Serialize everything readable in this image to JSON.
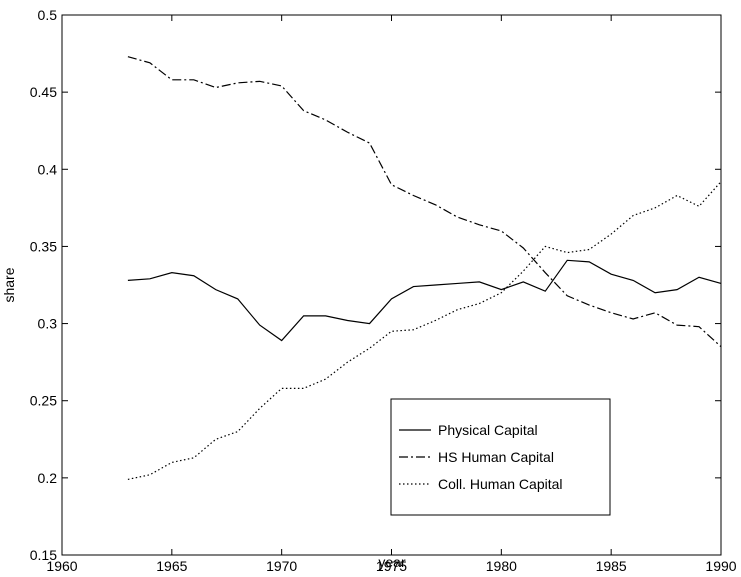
{
  "chart_data": {
    "type": "line",
    "xlabel": "year",
    "ylabel": "share",
    "x": [
      1963,
      1964,
      1965,
      1966,
      1967,
      1968,
      1969,
      1970,
      1971,
      1972,
      1973,
      1974,
      1975,
      1976,
      1977,
      1978,
      1979,
      1980,
      1981,
      1982,
      1983,
      1984,
      1985,
      1986,
      1987,
      1988,
      1989,
      1990
    ],
    "series": [
      {
        "name": "Physical Capital",
        "color": "#000000",
        "linestyle": "solid",
        "values": [
          0.328,
          0.329,
          0.333,
          0.331,
          0.322,
          0.316,
          0.299,
          0.289,
          0.305,
          0.305,
          0.302,
          0.3,
          0.316,
          0.324,
          0.325,
          0.326,
          0.327,
          0.322,
          0.327,
          0.321,
          0.341,
          0.34,
          0.332,
          0.328,
          0.32,
          0.322,
          0.33,
          0.326
        ]
      },
      {
        "name": "HS Human Capital",
        "color": "#000000",
        "linestyle": "dashdot",
        "values": [
          0.473,
          0.469,
          0.458,
          0.458,
          0.453,
          0.456,
          0.457,
          0.454,
          0.438,
          0.432,
          0.424,
          0.417,
          0.39,
          0.383,
          0.377,
          0.369,
          0.364,
          0.36,
          0.349,
          0.333,
          0.318,
          0.312,
          0.307,
          0.303,
          0.307,
          0.299,
          0.298,
          0.285
        ]
      },
      {
        "name": "Coll. Human Capital",
        "color": "#000000",
        "linestyle": "dotted",
        "values": [
          0.199,
          0.202,
          0.21,
          0.213,
          0.225,
          0.23,
          0.245,
          0.258,
          0.258,
          0.264,
          0.275,
          0.284,
          0.295,
          0.296,
          0.302,
          0.309,
          0.313,
          0.32,
          0.334,
          0.35,
          0.346,
          0.348,
          0.358,
          0.37,
          0.375,
          0.383,
          0.376,
          0.392
        ]
      }
    ],
    "xlim": [
      1960,
      1990
    ],
    "xticks": [
      1960,
      1965,
      1970,
      1975,
      1980,
      1985,
      1990
    ],
    "ylim": [
      0.15,
      0.5
    ],
    "yticks": [
      0.15,
      0.2,
      0.25,
      0.3,
      0.35,
      0.4,
      0.45,
      0.5
    ],
    "grid": false,
    "legend": "lower right"
  }
}
